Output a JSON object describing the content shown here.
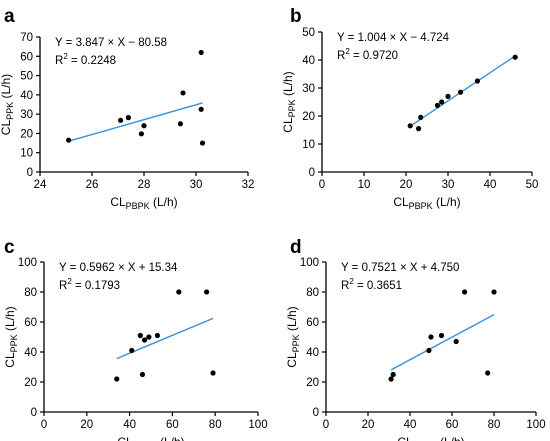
{
  "chart_data": [
    {
      "type": "scatter",
      "panel_label": "a",
      "equation": "Y = 3.847 × X − 80.58",
      "r2_prefix": "R",
      "r2_sup": "2",
      "r2_value": " = 0.2248",
      "xlabel_main": "CL",
      "xlabel_sub": "PBPK",
      "xlabel_unit": " (L/h)",
      "ylabel_main": "CL",
      "ylabel_sub": "PPK",
      "ylabel_unit": " (L/h)",
      "xlim": [
        24,
        32
      ],
      "ylim": [
        0,
        70
      ],
      "xticks": [
        24,
        26,
        28,
        30,
        32
      ],
      "yticks": [
        0,
        10,
        20,
        30,
        40,
        50,
        60,
        70
      ],
      "points": [
        [
          25.1,
          16.5
        ],
        [
          27.1,
          26.8
        ],
        [
          27.4,
          28.2
        ],
        [
          27.9,
          19.8
        ],
        [
          28.0,
          24.0
        ],
        [
          29.4,
          25.0
        ],
        [
          29.5,
          41.0
        ],
        [
          30.2,
          62.0
        ],
        [
          30.2,
          32.5
        ],
        [
          30.25,
          15.0
        ]
      ],
      "fit": {
        "slope": 3.847,
        "intercept": -80.58,
        "x_range": [
          25.1,
          30.25
        ]
      }
    },
    {
      "type": "scatter",
      "panel_label": "b",
      "equation": "Y = 1.004 × X − 4.724",
      "r2_prefix": "R",
      "r2_sup": "2",
      "r2_value": " = 0.9720",
      "xlabel_main": "CL",
      "xlabel_sub": "PBPK",
      "xlabel_unit": " (L/h)",
      "ylabel_main": "CL",
      "ylabel_sub": "PPK",
      "ylabel_unit": " (L/h)",
      "xlim": [
        0,
        50
      ],
      "ylim": [
        0,
        50
      ],
      "xticks": [
        0,
        10,
        20,
        30,
        40,
        50
      ],
      "yticks": [
        0,
        10,
        20,
        30,
        40,
        50
      ],
      "points": [
        [
          21.0,
          16.5
        ],
        [
          23.0,
          15.5
        ],
        [
          23.5,
          19.5
        ],
        [
          27.5,
          23.8
        ],
        [
          28.5,
          25.0
        ],
        [
          30.0,
          27.0
        ],
        [
          33.0,
          28.5
        ],
        [
          37.0,
          32.5
        ],
        [
          46.0,
          41.0
        ]
      ],
      "fit": {
        "slope": 1.004,
        "intercept": -4.724,
        "x_range": [
          21.0,
          46.0
        ]
      }
    },
    {
      "type": "scatter",
      "panel_label": "c",
      "equation": "Y = 0.5962 × X + 15.34",
      "r2_prefix": "R",
      "r2_sup": "2",
      "r2_value": " = 0.1793",
      "xlabel_main": "CL",
      "xlabel_sub": "PBPK",
      "xlabel_unit": " (L/h)",
      "ylabel_main": "CL",
      "ylabel_sub": "PPK",
      "ylabel_unit": " (L/h)",
      "xlim": [
        0,
        100
      ],
      "ylim": [
        0,
        100
      ],
      "xticks": [
        0,
        20,
        40,
        60,
        80,
        100
      ],
      "yticks": [
        0,
        20,
        40,
        60,
        80,
        100
      ],
      "points": [
        [
          34,
          22
        ],
        [
          41,
          41
        ],
        [
          45,
          51
        ],
        [
          46,
          25
        ],
        [
          47,
          48
        ],
        [
          49,
          50
        ],
        [
          53,
          51
        ],
        [
          63,
          80
        ],
        [
          76,
          80
        ],
        [
          79,
          26
        ]
      ],
      "fit": {
        "slope": 0.5962,
        "intercept": 15.34,
        "x_range": [
          34,
          79
        ]
      }
    },
    {
      "type": "scatter",
      "panel_label": "d",
      "equation": "Y = 0.7521 × X + 4.750",
      "r2_prefix": "R",
      "r2_sup": "2",
      "r2_value": " = 0.3651",
      "xlabel_main": "CL",
      "xlabel_sub": "PBPK",
      "xlabel_unit": " (L/h)",
      "ylabel_main": "CL",
      "ylabel_sub": "PPK",
      "ylabel_unit": " (L/h)",
      "xlim": [
        0,
        100
      ],
      "ylim": [
        0,
        100
      ],
      "xticks": [
        0,
        20,
        40,
        60,
        80,
        100
      ],
      "yticks": [
        0,
        20,
        40,
        60,
        80,
        100
      ],
      "points": [
        [
          31,
          22
        ],
        [
          32,
          25
        ],
        [
          49,
          41
        ],
        [
          50,
          50
        ],
        [
          55,
          51
        ],
        [
          62,
          47
        ],
        [
          66,
          80
        ],
        [
          77,
          26
        ],
        [
          80,
          80
        ]
      ],
      "fit": {
        "slope": 0.7521,
        "intercept": 4.75,
        "x_range": [
          31,
          80
        ]
      }
    }
  ]
}
